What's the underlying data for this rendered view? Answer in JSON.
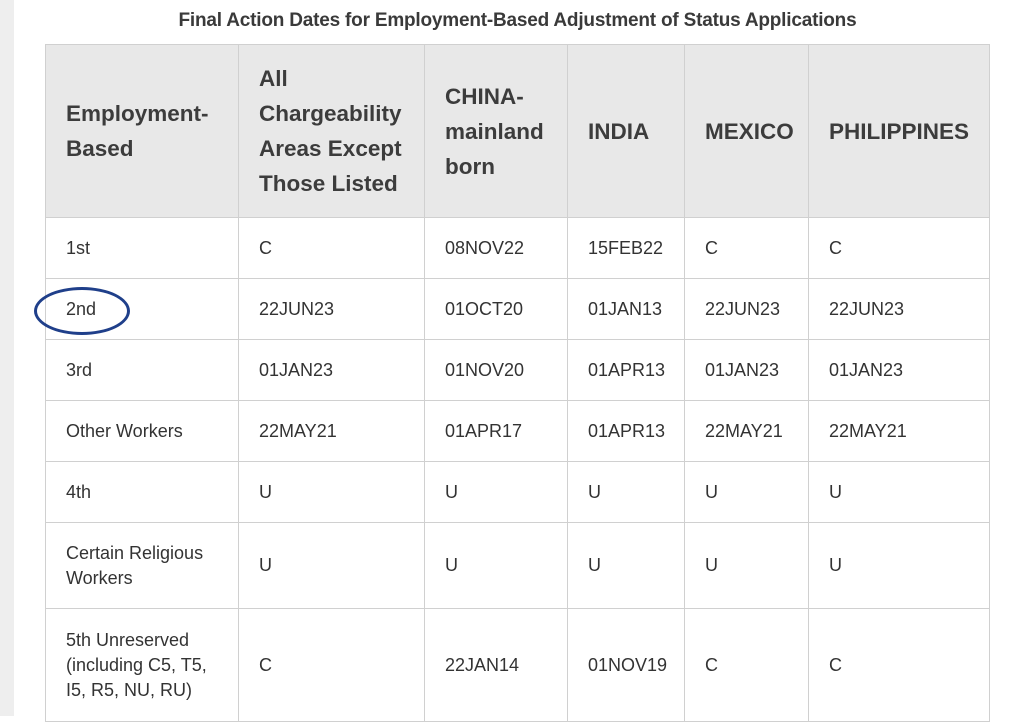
{
  "table": {
    "caption": "Final Action Dates for Employment-Based Adjustment of Status Applications",
    "headers": [
      "Employment-Based",
      "All Chargeability Areas Except Those Listed",
      "CHINA-mainland born",
      "INDIA",
      "MEXICO",
      "PHILIPPINES"
    ],
    "rows": [
      {
        "category": "1st",
        "cells": [
          "C",
          "08NOV22",
          "15FEB22",
          "C",
          "C"
        ]
      },
      {
        "category": "2nd",
        "cells": [
          "22JUN23",
          "01OCT20",
          "01JAN13",
          "22JUN23",
          "22JUN23"
        ]
      },
      {
        "category": "3rd",
        "cells": [
          "01JAN23",
          "01NOV20",
          "01APR13",
          "01JAN23",
          "01JAN23"
        ]
      },
      {
        "category": "Other Workers",
        "cells": [
          "22MAY21",
          "01APR17",
          "01APR13",
          "22MAY21",
          "22MAY21"
        ]
      },
      {
        "category": "4th",
        "cells": [
          "U",
          "U",
          "U",
          "U",
          "U"
        ]
      },
      {
        "category": "Certain Religious Workers",
        "cells": [
          "U",
          "U",
          "U",
          "U",
          "U"
        ]
      },
      {
        "category": "5th Unreserved (including C5, T5, I5, R5, NU, RU)",
        "cells": [
          "C",
          "22JAN14",
          "01NOV19",
          "C",
          "C"
        ]
      }
    ]
  },
  "annotation": {
    "color": "#1f3f8a",
    "target_row": 1
  }
}
